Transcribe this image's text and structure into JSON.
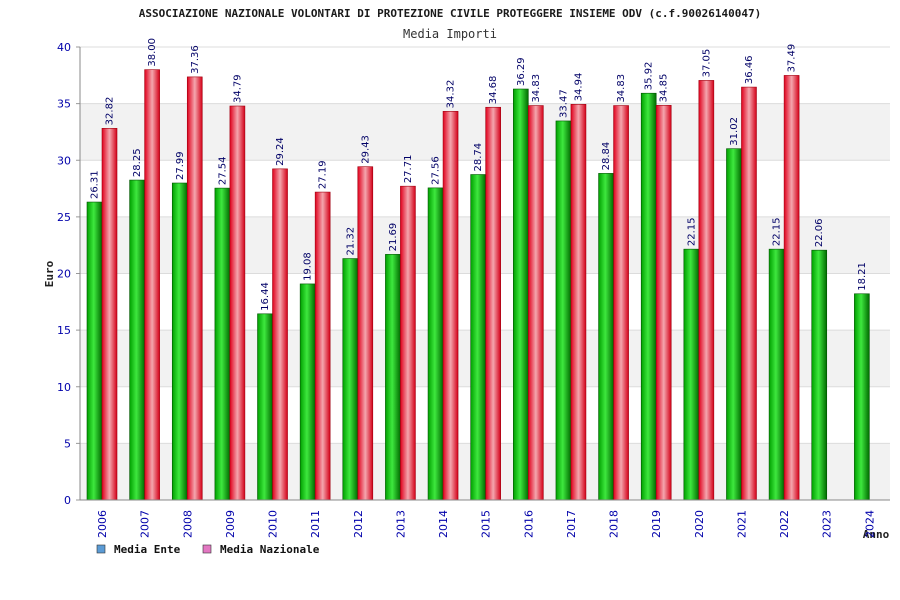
{
  "chart_data": {
    "type": "bar",
    "title": "ASSOCIAZIONE NAZIONALE VOLONTARI DI PROTEZIONE CIVILE PROTEGGERE INSIEME ODV (c.f.90026140047)",
    "subtitle": "Media Importi",
    "xlabel": "Anno",
    "ylabel": "Euro",
    "ylim": [
      0,
      40
    ],
    "yticks": [
      0,
      5,
      10,
      15,
      20,
      25,
      30,
      35,
      40
    ],
    "categories": [
      "2006",
      "2007",
      "2008",
      "2009",
      "2010",
      "2011",
      "2012",
      "2013",
      "2014",
      "2015",
      "2016",
      "2017",
      "2018",
      "2019",
      "2020",
      "2021",
      "2022",
      "2023",
      "2024"
    ],
    "series": [
      {
        "name": "Media Ente",
        "legend_color": "#5b9bd5",
        "values": [
          26.31,
          28.25,
          27.99,
          27.54,
          16.44,
          19.08,
          21.32,
          21.69,
          27.56,
          28.74,
          36.29,
          33.47,
          28.84,
          35.92,
          22.15,
          31.02,
          22.15,
          22.06,
          18.21
        ],
        "labels": [
          "26.31",
          "28.25",
          "27.99",
          "27.54",
          "16.44",
          "19.08",
          "21.32",
          "21.69",
          "27.56",
          "28.74",
          "36.29",
          "33.47",
          "28.84",
          "35.92",
          "22.15",
          "31.02",
          "22.15",
          "22.06",
          "18.21"
        ]
      },
      {
        "name": "Media Nazionale",
        "legend_color": "#e377c2",
        "values": [
          32.82,
          38.0,
          37.36,
          34.79,
          29.24,
          27.19,
          29.43,
          27.71,
          34.32,
          34.68,
          34.83,
          34.94,
          34.83,
          34.85,
          37.05,
          36.46,
          37.49,
          null,
          null
        ],
        "labels": [
          "32.82",
          "38.00",
          "37.36",
          "34.79",
          "29.24",
          "27.19",
          "29.43",
          "27.71",
          "34.32",
          "34.68",
          "34.83",
          "34.94",
          "34.83",
          "34.85",
          "37.05",
          "36.46",
          "37.49",
          "",
          ""
        ]
      }
    ],
    "grid": true,
    "legend": "bottom-left"
  }
}
